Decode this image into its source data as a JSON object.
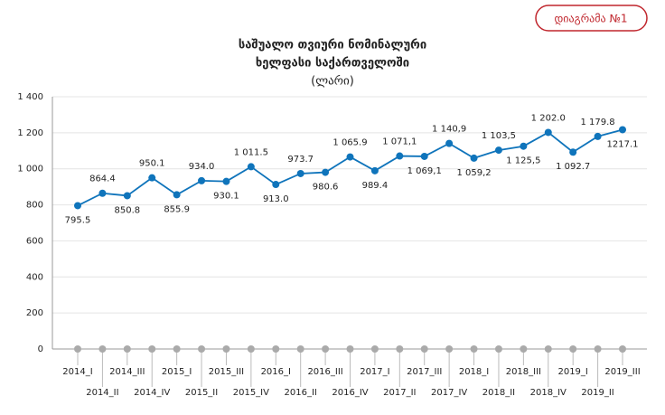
{
  "header": {
    "badge": "დიაგრამა №1"
  },
  "chart_data": {
    "type": "line",
    "title": [
      "საშუალო თვიური ნომინალური",
      "ხელფასი საქართველოში"
    ],
    "subtitle": "(ლარი)",
    "categories": [
      "2014_I",
      "2014_II",
      "2014_III",
      "2014_IV",
      "2015_I",
      "2015_II",
      "2015_III",
      "2015_IV",
      "2016_I",
      "2016_II",
      "2016_III",
      "2016_IV",
      "2017_I",
      "2017_II",
      "2017_III",
      "2017_IV",
      "2018_I",
      "2018_II",
      "2018_III",
      "2018_IV",
      "2019_I",
      "2019_II",
      "2019_III"
    ],
    "series": [
      {
        "color": "#0f74bb",
        "values": [
          795.5,
          864.4,
          850.8,
          950.1,
          855.9,
          934.0,
          930.1,
          1011.5,
          913.0,
          973.7,
          980.6,
          1065.9,
          989.4,
          1071.1,
          1069.1,
          1140.9,
          1059.2,
          1103.5,
          1125.5,
          1202.0,
          1092.7,
          1179.8,
          1217.1
        ],
        "value_labels": [
          "795.5",
          "864.4",
          "850.8",
          "950.1",
          "855.9",
          "934.0",
          "930.1",
          "1 011.5",
          "913.0",
          "973.7",
          "980.6",
          "1 065.9",
          "989.4",
          "1 071,1",
          "1 069,1",
          "1 140,9",
          "1 059,2",
          "1 103,5",
          "1 125,5",
          "1 202.0",
          "1 092.7",
          "1 179.8",
          "1217.1"
        ]
      }
    ],
    "ylim": [
      0,
      1400
    ],
    "yticks": [
      0,
      200,
      400,
      600,
      800,
      {
        "value": 1000,
        "label": "1 000"
      },
      {
        "value": 1200,
        "label": "1 200"
      },
      {
        "value": 1400,
        "label": "1 400"
      }
    ],
    "grid": true
  }
}
